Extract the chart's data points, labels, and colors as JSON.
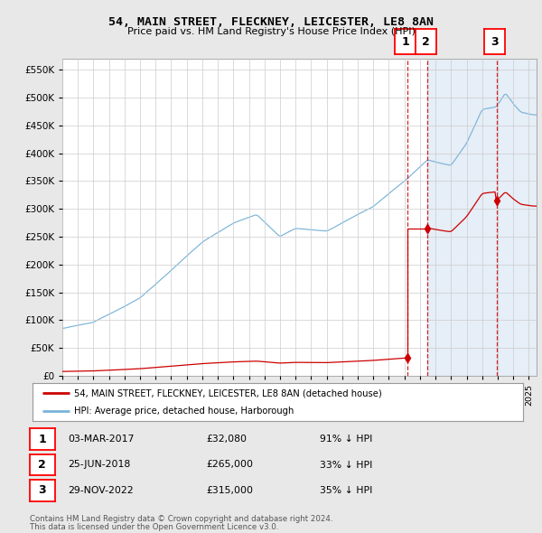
{
  "title": "54, MAIN STREET, FLECKNEY, LEICESTER, LE8 8AN",
  "subtitle": "Price paid vs. HM Land Registry's House Price Index (HPI)",
  "ylim": [
    0,
    570000
  ],
  "yticks": [
    0,
    50000,
    100000,
    150000,
    200000,
    250000,
    300000,
    350000,
    400000,
    450000,
    500000,
    550000
  ],
  "ytick_labels": [
    "£0",
    "£50K",
    "£100K",
    "£150K",
    "£200K",
    "£250K",
    "£300K",
    "£350K",
    "£400K",
    "£450K",
    "£500K",
    "£550K"
  ],
  "hpi_color": "#7ab4d8",
  "price_color": "#cc0000",
  "dashed_line_color": "#cc0000",
  "shade_color": "#dce8f5",
  "grid_color": "#cccccc",
  "fig_bg_color": "#e8e8e8",
  "plot_bg_color": "#ffffff",
  "transactions": [
    {
      "date_num": 2017.17,
      "price": 32080,
      "label": "1"
    },
    {
      "date_num": 2018.48,
      "price": 265000,
      "label": "2"
    },
    {
      "date_num": 2022.92,
      "price": 315000,
      "label": "3"
    }
  ],
  "transaction_info": [
    {
      "label": "1",
      "date": "03-MAR-2017",
      "price": "£32,080",
      "hpi_diff": "91% ↓ HPI"
    },
    {
      "label": "2",
      "date": "25-JUN-2018",
      "price": "£265,000",
      "hpi_diff": "33% ↓ HPI"
    },
    {
      "label": "3",
      "date": "29-NOV-2022",
      "price": "£315,000",
      "hpi_diff": "35% ↓ HPI"
    }
  ],
  "legend_line1": "54, MAIN STREET, FLECKNEY, LEICESTER, LE8 8AN (detached house)",
  "legend_line2": "HPI: Average price, detached house, Harborough",
  "footer1": "Contains HM Land Registry data © Crown copyright and database right 2024.",
  "footer2": "This data is licensed under the Open Government Licence v3.0.",
  "xmin": 1995.0,
  "xmax": 2025.5
}
